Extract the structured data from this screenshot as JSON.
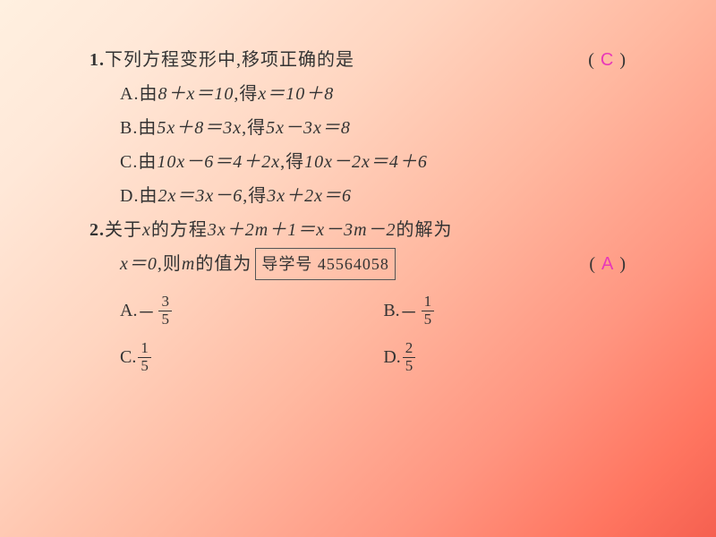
{
  "q1": {
    "number": "1.",
    "text": " 下列方程变形中,移项正确的是",
    "paren_l": "(",
    "answer": "C",
    "paren_r": ")",
    "opts": [
      {
        "label": "A. ",
        "pre": "由 ",
        "m1": "8＋x＝10",
        "mid": ",得 ",
        "m2": "x＝10＋8"
      },
      {
        "label": "B. ",
        "pre": "由 ",
        "m1": "5x＋8＝3x",
        "mid": ",得 ",
        "m2": "5x－3x＝8"
      },
      {
        "label": "C. ",
        "pre": "由 ",
        "m1": "10x－6＝4＋2x",
        "mid": ",得 ",
        "m2": "10x－2x＝4＋6"
      },
      {
        "label": "D. ",
        "pre": "由 ",
        "m1": "2x＝3x－6",
        "mid": ",得 ",
        "m2": "3x＋2x＝6"
      }
    ]
  },
  "q2": {
    "number": "2.",
    "text_a": " 关于 ",
    "var1": "x",
    "text_b": " 的方程 ",
    "eq": "3x＋2m＋1＝x－3m－2",
    "text_c": " 的解为",
    "cond": "x＝0",
    "text_d": ",则 ",
    "var2": "m",
    "text_e": " 的值为",
    "ref": "导学号 45564058",
    "paren_l": "(",
    "answer": "A",
    "paren_r": ")",
    "opts": [
      {
        "label": "A. ",
        "sign": "－",
        "num": "3",
        "den": "5"
      },
      {
        "label": "B. ",
        "sign": "－",
        "num": "1",
        "den": "5"
      },
      {
        "label": "C. ",
        "sign": "",
        "num": "1",
        "den": "5"
      },
      {
        "label": "D. ",
        "sign": "",
        "num": "2",
        "den": "5"
      }
    ]
  }
}
